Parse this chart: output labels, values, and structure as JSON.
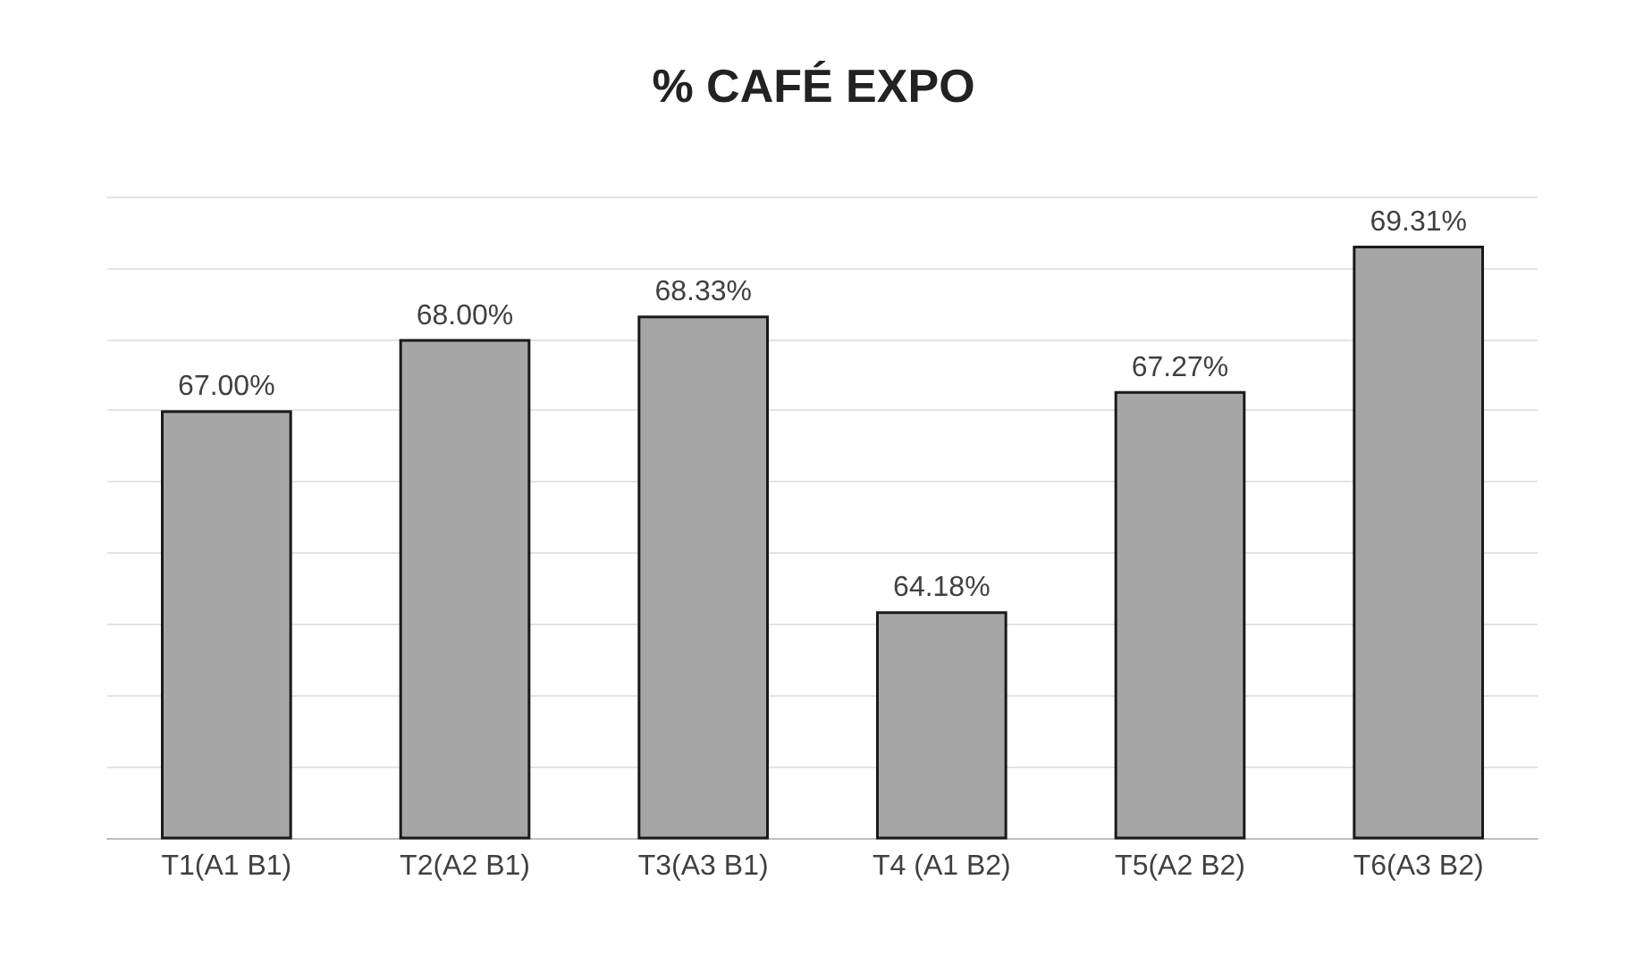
{
  "chart_data": {
    "type": "bar",
    "title": "% CAFÉ EXPO",
    "categories": [
      "T1(A1 B1)",
      "T2(A2 B1)",
      "T3(A3 B1)",
      "T4 (A1 B2)",
      "T5(A2 B2)",
      "T6(A3 B2)"
    ],
    "values": [
      67.0,
      68.0,
      68.33,
      64.18,
      67.27,
      69.31
    ],
    "value_labels": [
      "67.00%",
      "68.00%",
      "68.33%",
      "64.18%",
      "67.27%",
      "69.31%"
    ],
    "color": "#a6a6a6",
    "ylim": [
      61,
      70
    ],
    "yticks": [
      {
        "value": 61,
        "label": null
      },
      {
        "value": 62,
        "label": null
      },
      {
        "value": 63,
        "label": null
      },
      {
        "value": 64,
        "label": null
      },
      {
        "value": 65,
        "label": null
      },
      {
        "value": 66,
        "label": null
      },
      {
        "value": 67,
        "label": null
      },
      {
        "value": 68,
        "label": null
      },
      {
        "value": 69,
        "label": null
      },
      {
        "value": 70,
        "label": null
      }
    ],
    "grid": "y",
    "tick_labels": "x"
  }
}
